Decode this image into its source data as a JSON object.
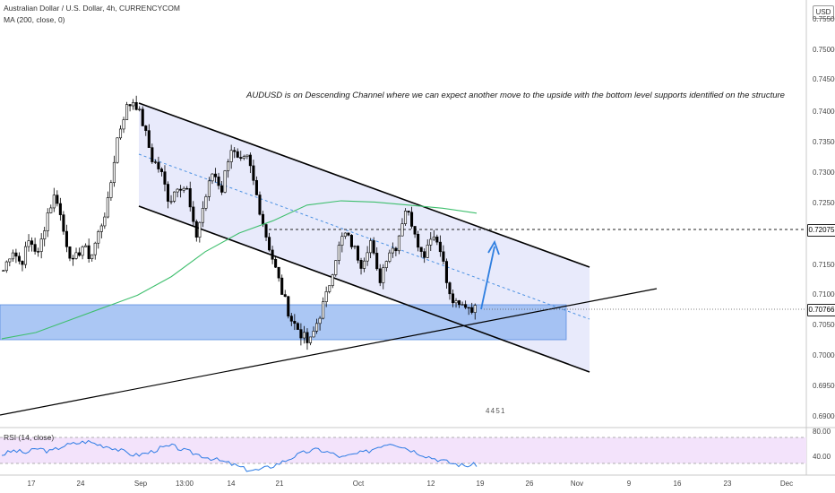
{
  "legend": {
    "symbol_line": "Australian Dollar / U.S. Dollar, 4h, CURRENCYCOM",
    "ma_line": "MA (200, close, 0)"
  },
  "rsi_legend": "RSI (14, close)",
  "currency_badge": "USD",
  "annotation": "AUDUSD is on Descending Channel where we can expect another move to the upside with the bottom level supports identified on the structure",
  "y_axis_labels": [
    "0.75500",
    "0.75000",
    "0.74500",
    "0.74000",
    "0.73500",
    "0.73000",
    "0.72500",
    "0.71500",
    "0.71000",
    "0.70500",
    "0.70000",
    "0.69500",
    "0.69000"
  ],
  "price_badges": {
    "resistance": "0.72075",
    "last_price": "0.70766"
  },
  "rsi_axis_labels": [
    "80.00",
    "40.00"
  ],
  "x_axis_labels": [
    "17",
    "24",
    "Sep",
    "13:00",
    "14",
    "21",
    "Oct",
    "12",
    "19",
    "26",
    "Nov",
    "9",
    "16",
    "23",
    "Dec"
  ],
  "events_marker": "4 4 5 1",
  "colors": {
    "candle": "#000000",
    "ma": "#3fbf6e",
    "channel_fill": "#e8eafb",
    "support_zone": "#8fb4f0",
    "arrow": "#2f7fe0",
    "rsi_line": "#2c7be5",
    "rsi_band": "#f3e3fb"
  },
  "chart_data": {
    "type": "candlestick",
    "symbol": "Australian Dollar / U.S. Dollar",
    "timeframe": "4h",
    "ylim": [
      0.689,
      0.7575
    ],
    "y_ticks": [
      0.755,
      0.75,
      0.745,
      0.74,
      0.735,
      0.73,
      0.725,
      0.715,
      0.71,
      0.705,
      0.7,
      0.695,
      0.69
    ],
    "last_price": 0.70766,
    "resistance_level": 0.72075,
    "close_path": [
      0.714,
      0.7175,
      0.715,
      0.719,
      0.7165,
      0.723,
      0.7265,
      0.7195,
      0.715,
      0.718,
      0.716,
      0.7205,
      0.725,
      0.735,
      0.74,
      0.7415,
      0.7375,
      0.732,
      0.73,
      0.725,
      0.728,
      0.727,
      0.719,
      0.725,
      0.73,
      0.727,
      0.734,
      0.731,
      0.732,
      0.726,
      0.72,
      0.715,
      0.71,
      0.706,
      0.704,
      0.702,
      0.706,
      0.71,
      0.716,
      0.72,
      0.718,
      0.715,
      0.719,
      0.712,
      0.717,
      0.718,
      0.724,
      0.721,
      0.716,
      0.72,
      0.718,
      0.71,
      0.708,
      0.7085,
      0.7077
    ],
    "ma200_path": [
      0.703,
      0.704,
      0.706,
      0.708,
      0.71,
      0.713,
      0.717,
      0.72,
      0.722,
      0.7245,
      0.7252,
      0.725,
      0.7245,
      0.724,
      0.7232
    ],
    "rsi": {
      "ylim": [
        20,
        100
      ],
      "levels": [
        70,
        30
      ],
      "path": [
        55,
        62,
        58,
        66,
        60,
        70,
        74,
        78,
        72,
        68,
        60,
        54,
        58,
        66,
        70,
        62,
        56,
        50,
        44,
        38,
        30,
        28,
        34,
        42,
        52,
        60,
        64,
        58,
        50,
        56,
        60,
        70,
        76,
        68,
        60,
        52,
        46,
        40,
        36,
        38
      ]
    },
    "annotations": {
      "channel": "descending",
      "support_zone": [
        0.703,
        0.7085
      ],
      "projection": "upside"
    }
  }
}
